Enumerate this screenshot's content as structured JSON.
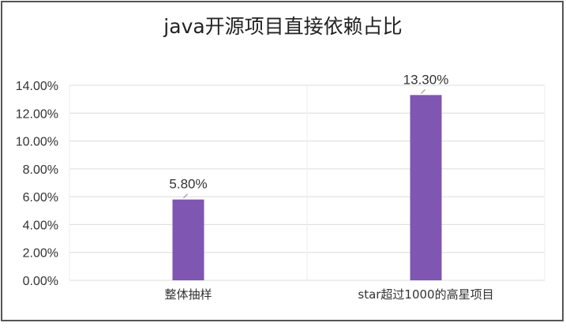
{
  "chart_data": {
    "type": "bar",
    "title": "java开源项目直接依赖占比",
    "categories": [
      "整体抽样",
      "star超过1000的高星项目"
    ],
    "values": [
      5.8,
      13.3
    ],
    "data_labels": [
      "5.80%",
      "13.30%"
    ],
    "ylim": [
      0,
      14
    ],
    "yticks": [
      0,
      2,
      4,
      6,
      8,
      10,
      12,
      14
    ],
    "ytick_labels": [
      "0.00%",
      "2.00%",
      "4.00%",
      "6.00%",
      "8.00%",
      "10.00%",
      "12.00%",
      "14.00%"
    ],
    "xlabel": "",
    "ylabel": "",
    "grid": true,
    "legend": "none",
    "bar_color": "#7f56b1",
    "grid_color": "#dcdcdc"
  }
}
